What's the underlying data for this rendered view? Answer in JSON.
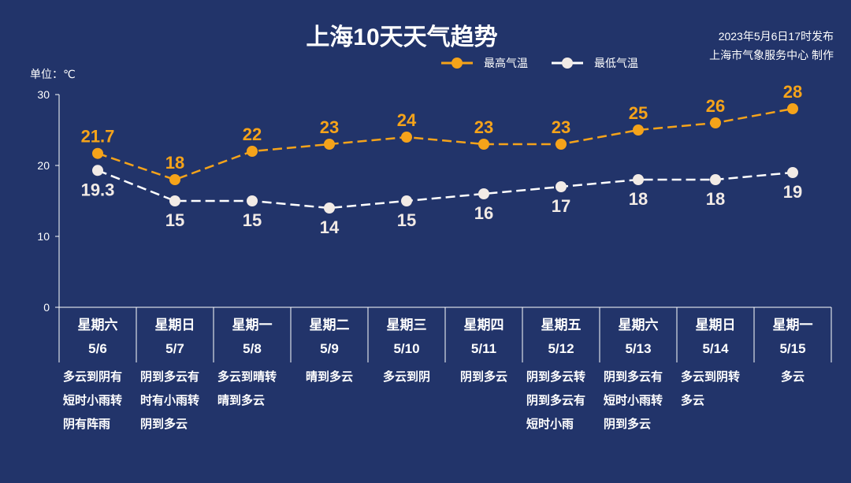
{
  "title": "上海10天天气趋势",
  "publish_time": "2023年5月6日17时发布",
  "producer": "上海市气象服务中心 制作",
  "unit_label": "单位：℃",
  "colors": {
    "background": "#22346a",
    "high": "#f5a31a",
    "low": "#f2ebe6"
  },
  "chart_data": {
    "type": "line",
    "title": "上海10天天气趋势",
    "ylabel": "单位：℃",
    "ylim": [
      0,
      30
    ],
    "yticks": [
      "0",
      "10",
      "20",
      "30"
    ],
    "legend_position": "top-right",
    "categories": [
      "5/6",
      "5/7",
      "5/8",
      "5/9",
      "5/10",
      "5/11",
      "5/12",
      "5/13",
      "5/14",
      "5/15"
    ],
    "weekdays": [
      "星期六",
      "星期日",
      "星期一",
      "星期二",
      "星期三",
      "星期四",
      "星期五",
      "星期六",
      "星期日",
      "星期一"
    ],
    "weather": [
      [
        "多云到阴有",
        "短时小雨转",
        "阴有阵雨"
      ],
      [
        "阴到多云有",
        "时有小雨转",
        "阴到多云"
      ],
      [
        "多云到晴转",
        "晴到多云"
      ],
      [
        "晴到多云"
      ],
      [
        "多云到阴"
      ],
      [
        "阴到多云"
      ],
      [
        "阴到多云转",
        "阴到多云有",
        "短时小雨"
      ],
      [
        "阴到多云有",
        "短时小雨转",
        "阴到多云"
      ],
      [
        "多云到阴转",
        "多云"
      ],
      [
        "多云"
      ]
    ],
    "series": [
      {
        "name": "最高气温",
        "values": [
          21.7,
          18,
          22,
          23,
          24,
          23,
          23,
          25,
          26,
          28
        ],
        "labels": [
          "21.7",
          "18",
          "22",
          "23",
          "24",
          "23",
          "23",
          "25",
          "26",
          "28"
        ]
      },
      {
        "name": "最低气温",
        "values": [
          19.3,
          15,
          15,
          14,
          15,
          16,
          17,
          18,
          18,
          19
        ],
        "labels": [
          "19.3",
          "15",
          "15",
          "14",
          "15",
          "16",
          "17",
          "18",
          "18",
          "19"
        ]
      }
    ]
  }
}
